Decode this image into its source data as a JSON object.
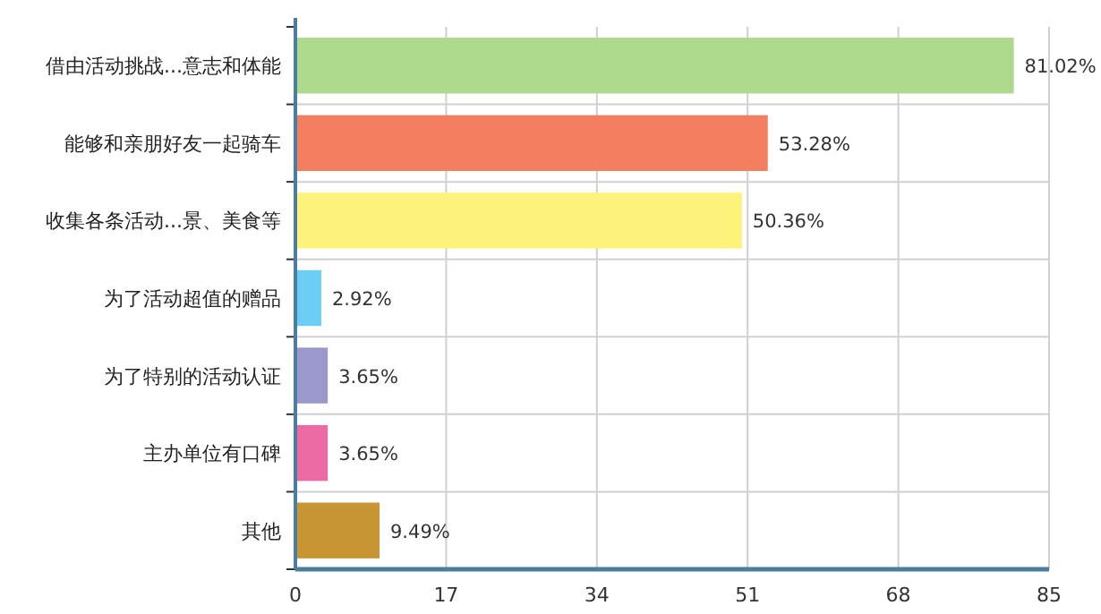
{
  "chart_data": {
    "type": "bar",
    "orientation": "horizontal",
    "categories": [
      "借由活动挑战...意志和体能",
      "能够和亲朋好友一起骑车",
      "收集各条活动...景、美食等",
      "为了活动超值的赠品",
      "为了特别的活动认证",
      "主办单位有口碑",
      "其他"
    ],
    "values": [
      81.02,
      53.28,
      50.36,
      2.92,
      3.65,
      3.65,
      9.49
    ],
    "colors": [
      "#acd98c",
      "#f47f60",
      "#fcf27c",
      "#6ccdf5",
      "#9b98cb",
      "#ed6ba5",
      "#c79533"
    ],
    "value_labels": [
      "81.02%",
      "53.28%",
      "50.36%",
      "2.92%",
      "3.65%",
      "3.65%",
      "9.49%"
    ],
    "xlim": [
      0,
      85
    ],
    "xticks": [
      0,
      17,
      34,
      51,
      68,
      85
    ],
    "grid": true
  }
}
